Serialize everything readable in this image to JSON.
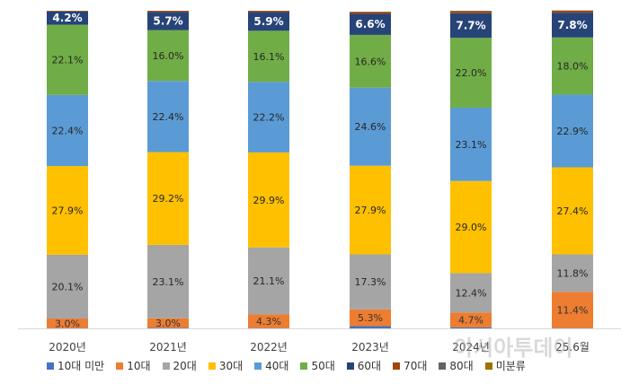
{
  "chart_data": {
    "type": "bar",
    "stacked": true,
    "percent": true,
    "categories": [
      "2020년",
      "2021년",
      "2022년",
      "2023년",
      "2024년",
      "25.6월"
    ],
    "series": [
      {
        "name": "10대 미만",
        "color": "#4472C4",
        "values": [
          0.1,
          0.2,
          0.1,
          0.7,
          0.3,
          0.1
        ]
      },
      {
        "name": "10대",
        "color": "#ED7D31",
        "values": [
          3.0,
          3.0,
          4.3,
          5.3,
          4.7,
          11.4
        ]
      },
      {
        "name": "20대",
        "color": "#A5A5A5",
        "values": [
          20.1,
          23.1,
          21.1,
          17.3,
          12.4,
          11.8
        ]
      },
      {
        "name": "30대",
        "color": "#FFC000",
        "values": [
          27.9,
          29.2,
          29.9,
          27.9,
          29.0,
          27.4
        ]
      },
      {
        "name": "40대",
        "color": "#5B9BD5",
        "values": [
          22.4,
          22.4,
          22.2,
          24.6,
          23.1,
          22.9
        ]
      },
      {
        "name": "50대",
        "color": "#70AD47",
        "values": [
          22.1,
          16.0,
          16.1,
          16.6,
          22.0,
          18.0
        ]
      },
      {
        "name": "60대",
        "color": "#264478",
        "values": [
          4.2,
          5.7,
          5.9,
          6.6,
          7.7,
          7.8
        ]
      },
      {
        "name": "70대",
        "color": "#9E480E",
        "values": [
          0.2,
          0.4,
          0.4,
          0.6,
          0.7,
          0.6
        ]
      },
      {
        "name": "80대",
        "color": "#636363",
        "values": [
          0.0,
          0.0,
          0.0,
          0.1,
          0.1,
          0.1
        ]
      },
      {
        "name": "미분류",
        "color": "#997300",
        "values": [
          0.0,
          0.0,
          0.0,
          0.0,
          0.0,
          0.0
        ]
      }
    ],
    "data_labels": {
      "10대": [
        "3.0%",
        "3.0%",
        "4.3%",
        "5.3%",
        "4.7%",
        "11.4%"
      ],
      "20대": [
        "20.1%",
        "23.1%",
        "21.1%",
        "17.3%",
        "12.4%",
        "11.8%"
      ],
      "30대": [
        "27.9%",
        "29.2%",
        "29.9%",
        "27.9%",
        "29.0%",
        "27.4%"
      ],
      "40대": [
        "22.4%",
        "22.4%",
        "22.2%",
        "24.6%",
        "23.1%",
        "22.9%"
      ],
      "50대": [
        "22.1%",
        "16.0%",
        "16.1%",
        "16.6%",
        "22.0%",
        "18.0%"
      ],
      "60대": [
        "4.2%",
        "5.7%",
        "5.9%",
        "6.6%",
        "7.7%",
        "7.8%"
      ]
    },
    "ylim": [
      0,
      100
    ],
    "grid": false,
    "legend_position": "bottom",
    "title": "",
    "xlabel": "",
    "ylabel": ""
  },
  "watermark": "아시아투데이"
}
